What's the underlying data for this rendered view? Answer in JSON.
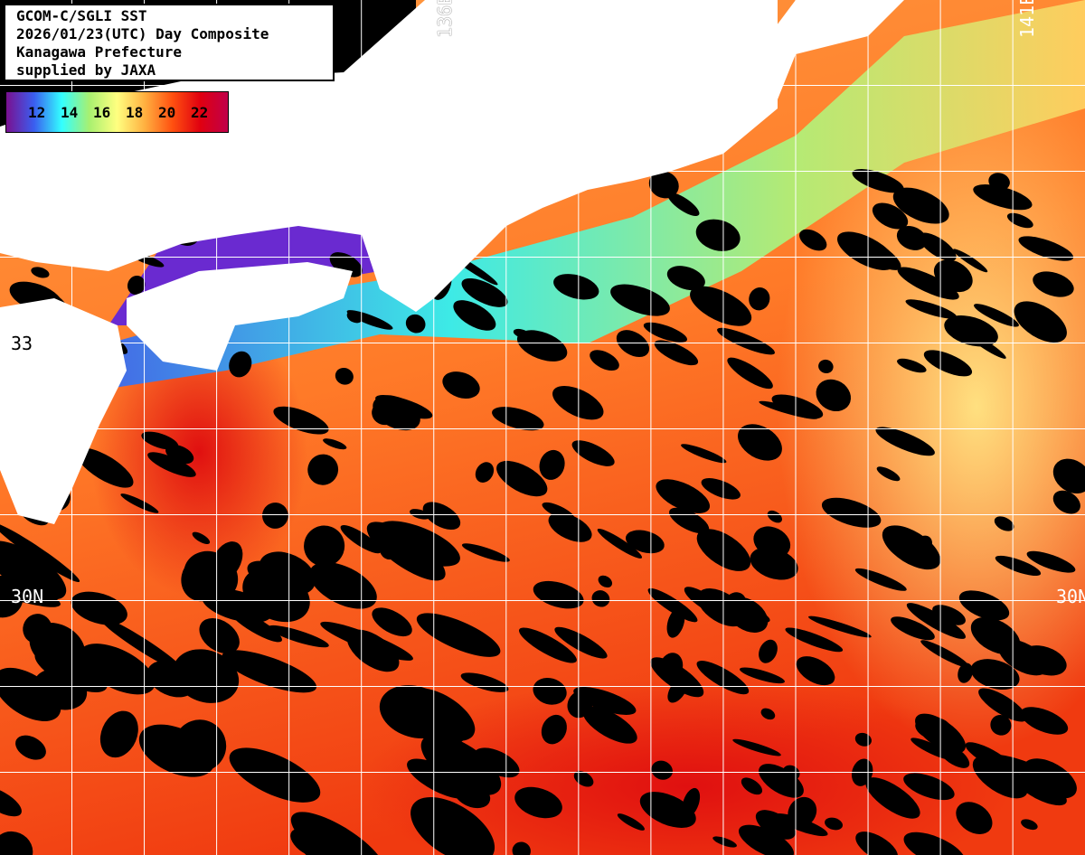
{
  "title": {
    "lines": [
      "GCOM-C/SGLI SST",
      "2026/01/23(UTC) Day Composite",
      "Kanagawa Prefecture",
      "supplied by JAXA"
    ]
  },
  "legend": {
    "unit_ticks": [
      "12",
      "14",
      "16",
      "18",
      "20",
      "22"
    ],
    "colors": [
      "#7a1090",
      "#3a5ef0",
      "#33ffff",
      "#a8f070",
      "#ffff80",
      "#ffb040",
      "#ff5010",
      "#e00010",
      "#c0004a"
    ]
  },
  "grid_labels": {
    "lon_left": "136E",
    "lon_right": "141E",
    "lat_upper": "33",
    "lat_left": "30N",
    "lat_right": "30N"
  },
  "colors": {
    "land": "#ffffff",
    "no_data": "#000000",
    "grid": "#ffffff"
  }
}
